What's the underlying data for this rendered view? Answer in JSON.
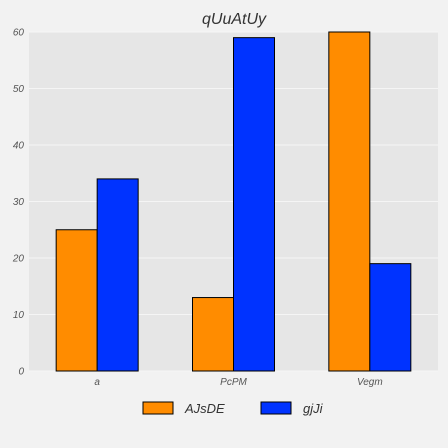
{
  "chart_data": {
    "type": "bar",
    "title": "qUuAtUy",
    "xlabel": "",
    "ylabel": "",
    "categories": [
      "a",
      "PcPM",
      "Vegm"
    ],
    "series": [
      {
        "name": "AJsDE",
        "values": [
          25,
          13,
          60
        ],
        "color": "#ff8c00"
      },
      {
        "name": "gjJi",
        "values": [
          34,
          59,
          19
        ],
        "color": "#0033ff"
      }
    ],
    "ylim": [
      0,
      60
    ],
    "yticks": [
      0,
      10,
      20,
      30,
      40,
      50,
      60
    ],
    "grid": true,
    "legend_position": "bottom-center",
    "colors": {
      "plot_background": "#e6e6e6",
      "page_background": "#f2f2f2",
      "grid": "#f5f5f5",
      "bar_edge": "#000000"
    }
  }
}
